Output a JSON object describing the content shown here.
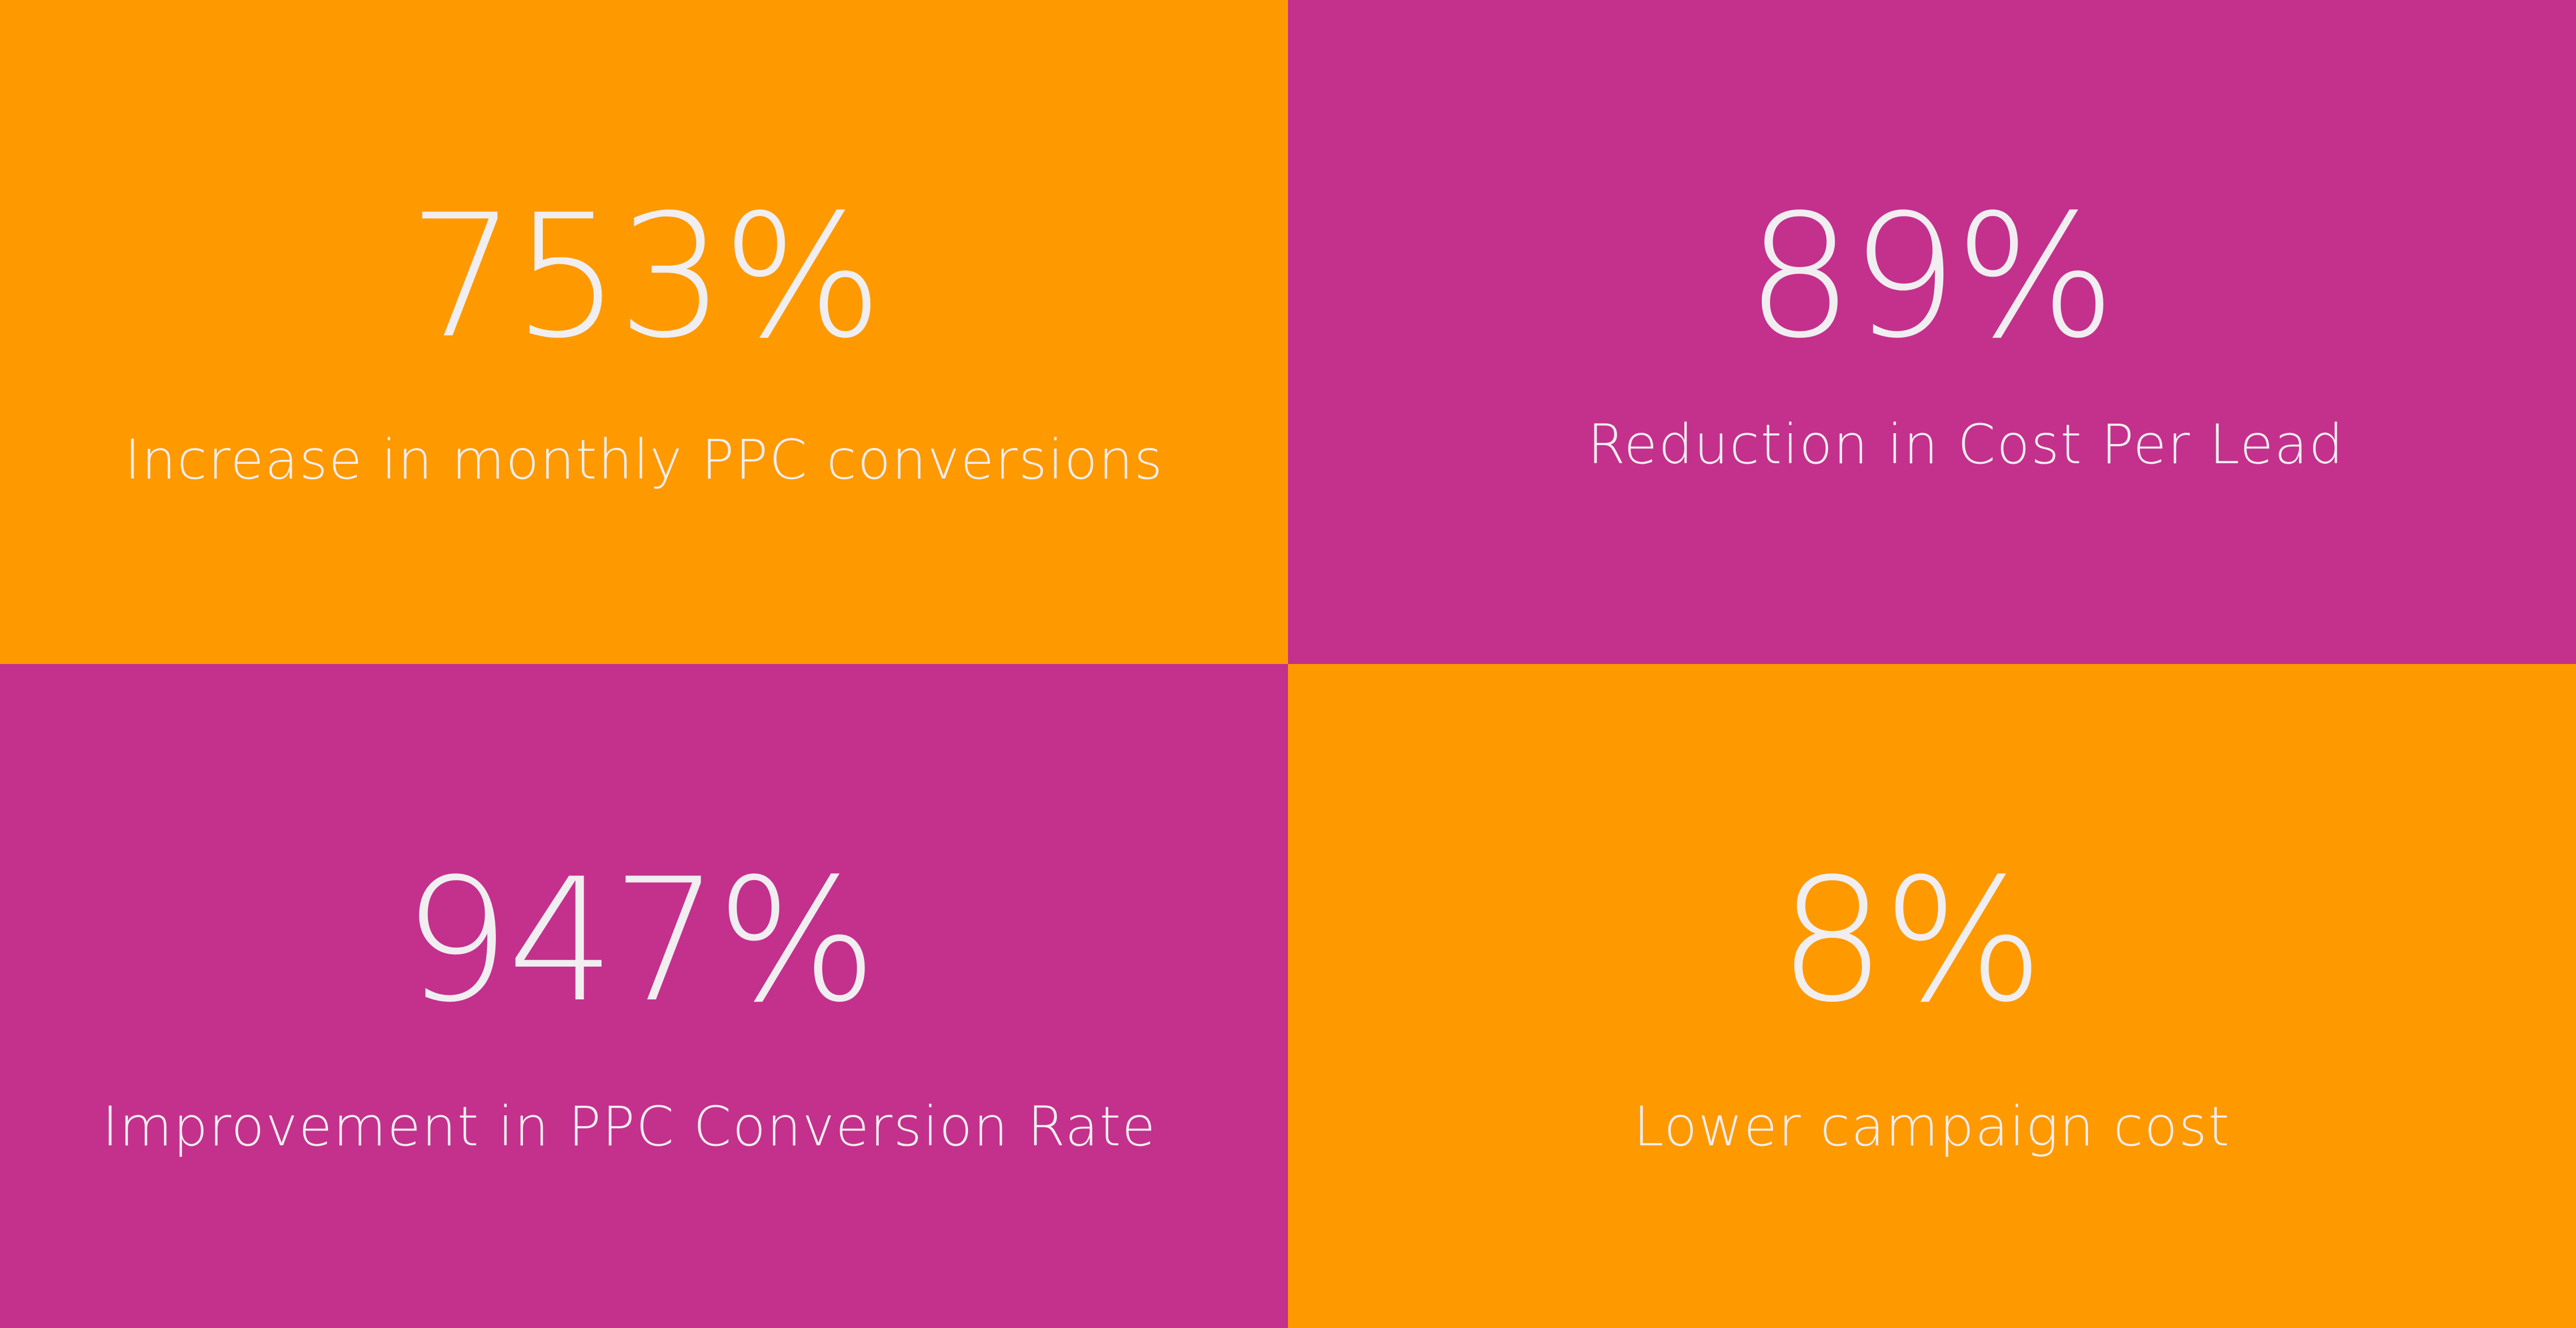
{
  "colors": {
    "orange": "#ff9900",
    "magenta": "#c3318c",
    "text": "#f0eef0"
  },
  "stats": [
    {
      "value": "753%",
      "label": "Increase in monthly PPC conversions"
    },
    {
      "value": "89%",
      "label": "Reduction in Cost Per Lead"
    },
    {
      "value": "947%",
      "label": "Improvement in PPC Conversion Rate"
    },
    {
      "value": "8%",
      "label": "Lower campaign cost"
    }
  ]
}
